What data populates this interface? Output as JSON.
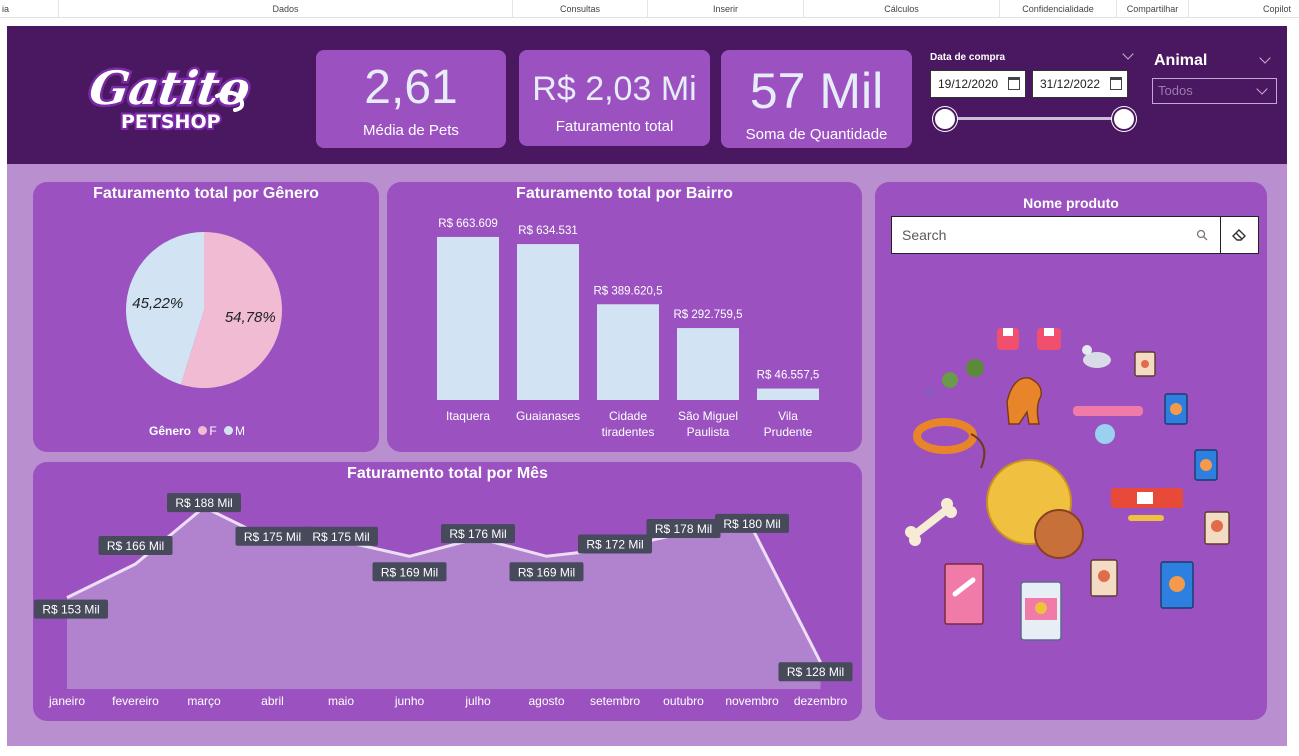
{
  "ribbon": {
    "tabs": [
      "ia",
      "Dados",
      "Consultas",
      "Inserir",
      "Cálculos",
      "Confidencialidade",
      "Compartilhar",
      "Copilot"
    ]
  },
  "colors": {
    "header_bg": "#4a1860",
    "panel_bg": "#9b52c0",
    "canvas_bg": "#b98fcf",
    "bar_fill": "#d2e4f4",
    "pie_f": "#f0bbd3",
    "pie_m": "#d2e4f4"
  },
  "logo": {
    "brand": "Gatito",
    "sub": "PETSHOP"
  },
  "kpis": {
    "media_pets": {
      "value": "2,61",
      "label": "Média de Pets"
    },
    "faturamento": {
      "value": "R$ 2,03 Mi",
      "label": "Faturamento total"
    },
    "quantidade": {
      "value": "57 Mil",
      "label": "Soma de Quantidade"
    }
  },
  "date_slicer": {
    "title": "Data de compra",
    "start": "19/12/2020",
    "end": "31/12/2022"
  },
  "animal_slicer": {
    "title": "Animal",
    "selected": "Todos"
  },
  "pie": {
    "title": "Faturamento total por Gênero",
    "legend_title": "Gênero",
    "legend_items": [
      "F",
      "M"
    ]
  },
  "bairro": {
    "title": "Faturamento total por Bairro"
  },
  "mes": {
    "title": "Faturamento total por Mês"
  },
  "produto": {
    "title": "Nome produto",
    "search_placeholder": "Search"
  },
  "chart_data": [
    {
      "type": "pie",
      "title": "Faturamento total por Gênero",
      "categories": [
        "F",
        "M"
      ],
      "values": [
        54.78,
        45.22
      ],
      "labels": [
        "54,78%",
        "45,22%"
      ],
      "legend_title": "Gênero",
      "legend_position": "bottom"
    },
    {
      "type": "bar",
      "title": "Faturamento total por Bairro",
      "categories": [
        "Itaquera",
        "Guaianases",
        "Cidade tiradentes",
        "São Miguel Paulista",
        "Vila Prudente"
      ],
      "values": [
        663609,
        634531,
        389620.5,
        292759.5,
        46557.5
      ],
      "labels": [
        "R$ 663.609",
        "R$ 634.531",
        "R$ 389.620,5",
        "R$ 292.759,5",
        "R$ 46.557,5"
      ],
      "ylim": [
        0,
        700000
      ]
    },
    {
      "type": "area",
      "title": "Faturamento total por Mês",
      "categories": [
        "janeiro",
        "fevereiro",
        "março",
        "abril",
        "maio",
        "junho",
        "julho",
        "agosto",
        "setembro",
        "outubro",
        "novembro",
        "dezembro"
      ],
      "values": [
        153,
        166,
        188,
        175,
        175,
        169,
        176,
        169,
        172,
        178,
        180,
        128
      ],
      "labels": [
        "R$ 153 Mil",
        "R$ 166 Mil",
        "R$ 188 Mil",
        "R$ 175 Mil",
        "R$ 175 Mil",
        "R$ 169 Mil",
        "R$ 176 Mil",
        "R$ 169 Mil",
        "R$ 172 Mil",
        "R$ 178 Mil",
        "R$ 180 Mil",
        "R$ 128 Mil"
      ],
      "ylim": [
        125,
        190
      ],
      "unit": "Mil R$"
    }
  ]
}
